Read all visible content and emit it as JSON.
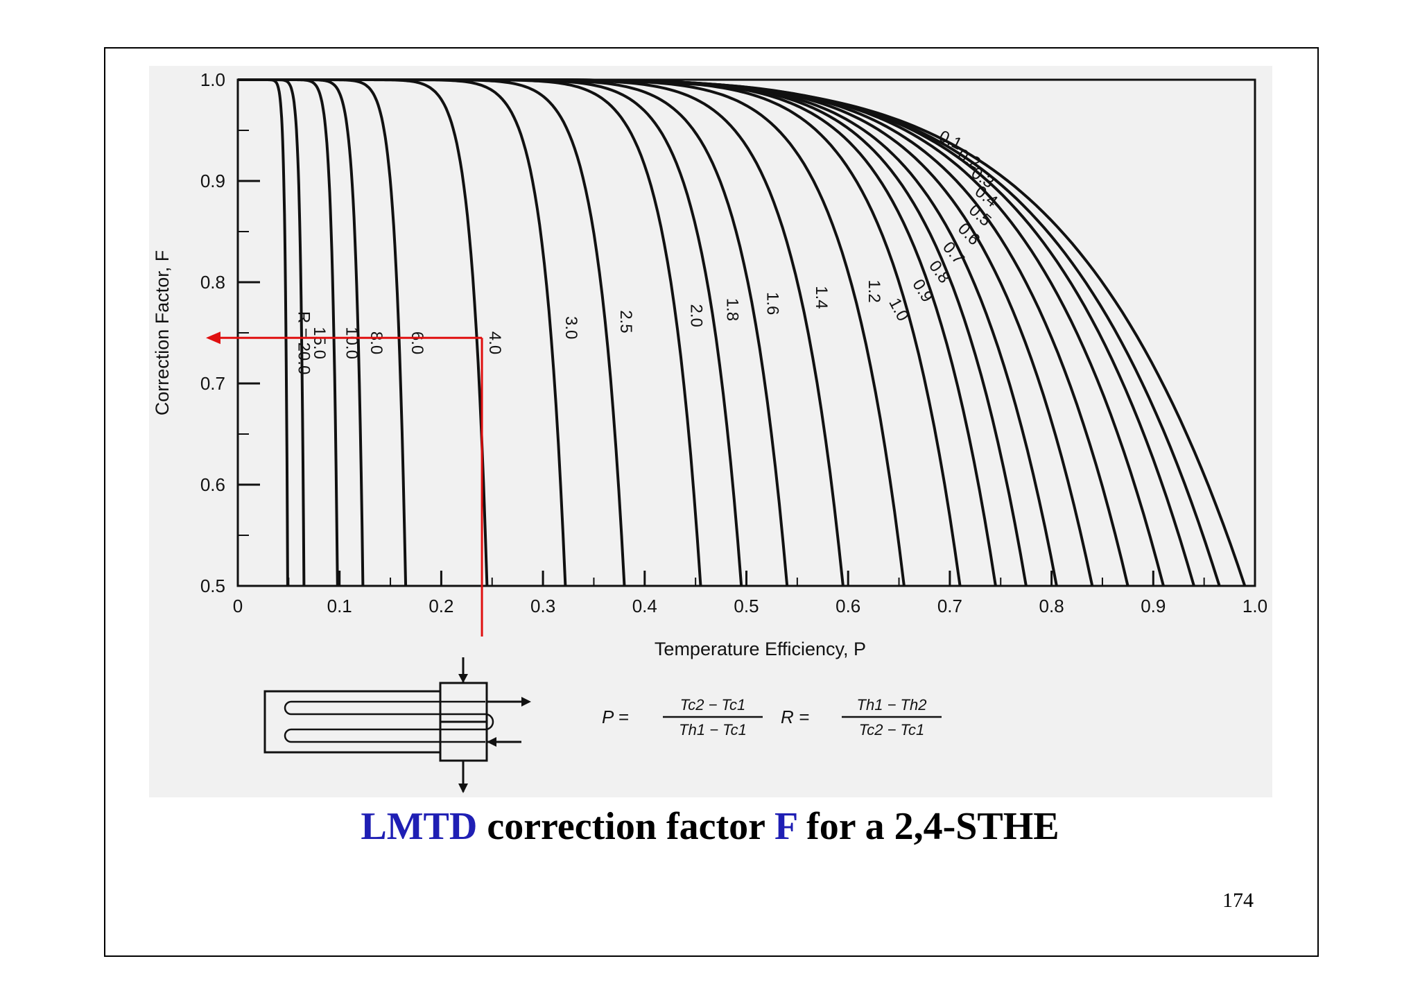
{
  "chart_data": {
    "type": "line",
    "xlabel": "Temperature Efficiency, P",
    "ylabel": "Correction Factor, F",
    "xlim": [
      0,
      1.0
    ],
    "ylim": [
      0.5,
      1.0
    ],
    "x_ticks": [
      "0",
      "0.1",
      "0.2",
      "0.3",
      "0.4",
      "0.5",
      "0.6",
      "0.7",
      "0.8",
      "0.9",
      "1.0"
    ],
    "y_ticks": [
      "0.5",
      "0.6",
      "0.7",
      "0.8",
      "0.9",
      "1.0"
    ],
    "grid": false,
    "series": [
      {
        "name": "R = 20.0",
        "label": "R = 20.0",
        "p_max": 0.049
      },
      {
        "name": "15.0",
        "label": "15.0",
        "p_max": 0.065
      },
      {
        "name": "10.0",
        "label": "10.0",
        "p_max": 0.098
      },
      {
        "name": "8.0",
        "label": "8.0",
        "p_max": 0.123
      },
      {
        "name": "6.0",
        "label": "6.0",
        "p_max": 0.165
      },
      {
        "name": "4.0",
        "label": "4.0",
        "p_max": 0.245
      },
      {
        "name": "3.0",
        "label": "3.0",
        "p_max": 0.322
      },
      {
        "name": "2.5",
        "label": "2.5",
        "p_max": 0.38
      },
      {
        "name": "2.0",
        "label": "2.0",
        "p_max": 0.455
      },
      {
        "name": "1.8",
        "label": "1.8",
        "p_max": 0.495
      },
      {
        "name": "1.6",
        "label": "1.6",
        "p_max": 0.54
      },
      {
        "name": "1.4",
        "label": "1.4",
        "p_max": 0.595
      },
      {
        "name": "1.2",
        "label": "1.2",
        "p_max": 0.655
      },
      {
        "name": "1.0",
        "label": "1.0",
        "p_max": 0.71
      },
      {
        "name": "0.9",
        "label": "0.9",
        "p_max": 0.745
      },
      {
        "name": "0.8",
        "label": "0.8",
        "p_max": 0.775
      },
      {
        "name": "0.7",
        "label": "0.7",
        "p_max": 0.805
      },
      {
        "name": "0.6",
        "label": "0.6",
        "p_max": 0.84
      },
      {
        "name": "0.5",
        "label": "0.5",
        "p_max": 0.875
      },
      {
        "name": "0.4",
        "label": "0.4",
        "p_max": 0.91
      },
      {
        "name": "0.3",
        "label": "0.3",
        "p_max": 0.94
      },
      {
        "name": "0.2",
        "label": "0.2",
        "p_max": 0.965
      },
      {
        "name": "0.1",
        "label": "0.1",
        "p_max": 0.99
      }
    ],
    "annotation": {
      "P": 0.24,
      "F": 0.745,
      "color": "#e01010"
    },
    "formulas": {
      "P": {
        "lhs": "P =",
        "num": "Tc2 − Tc1",
        "den": "Th1 − Tc1"
      },
      "R": {
        "lhs": "R =",
        "num": "Th1 − Th2",
        "den": "Tc2 − Tc1"
      }
    }
  },
  "caption": {
    "part1": "LMTD",
    "part2": " correction factor ",
    "part3": "F",
    "part4": " for a 2,4-STHE"
  },
  "page_number": "174"
}
